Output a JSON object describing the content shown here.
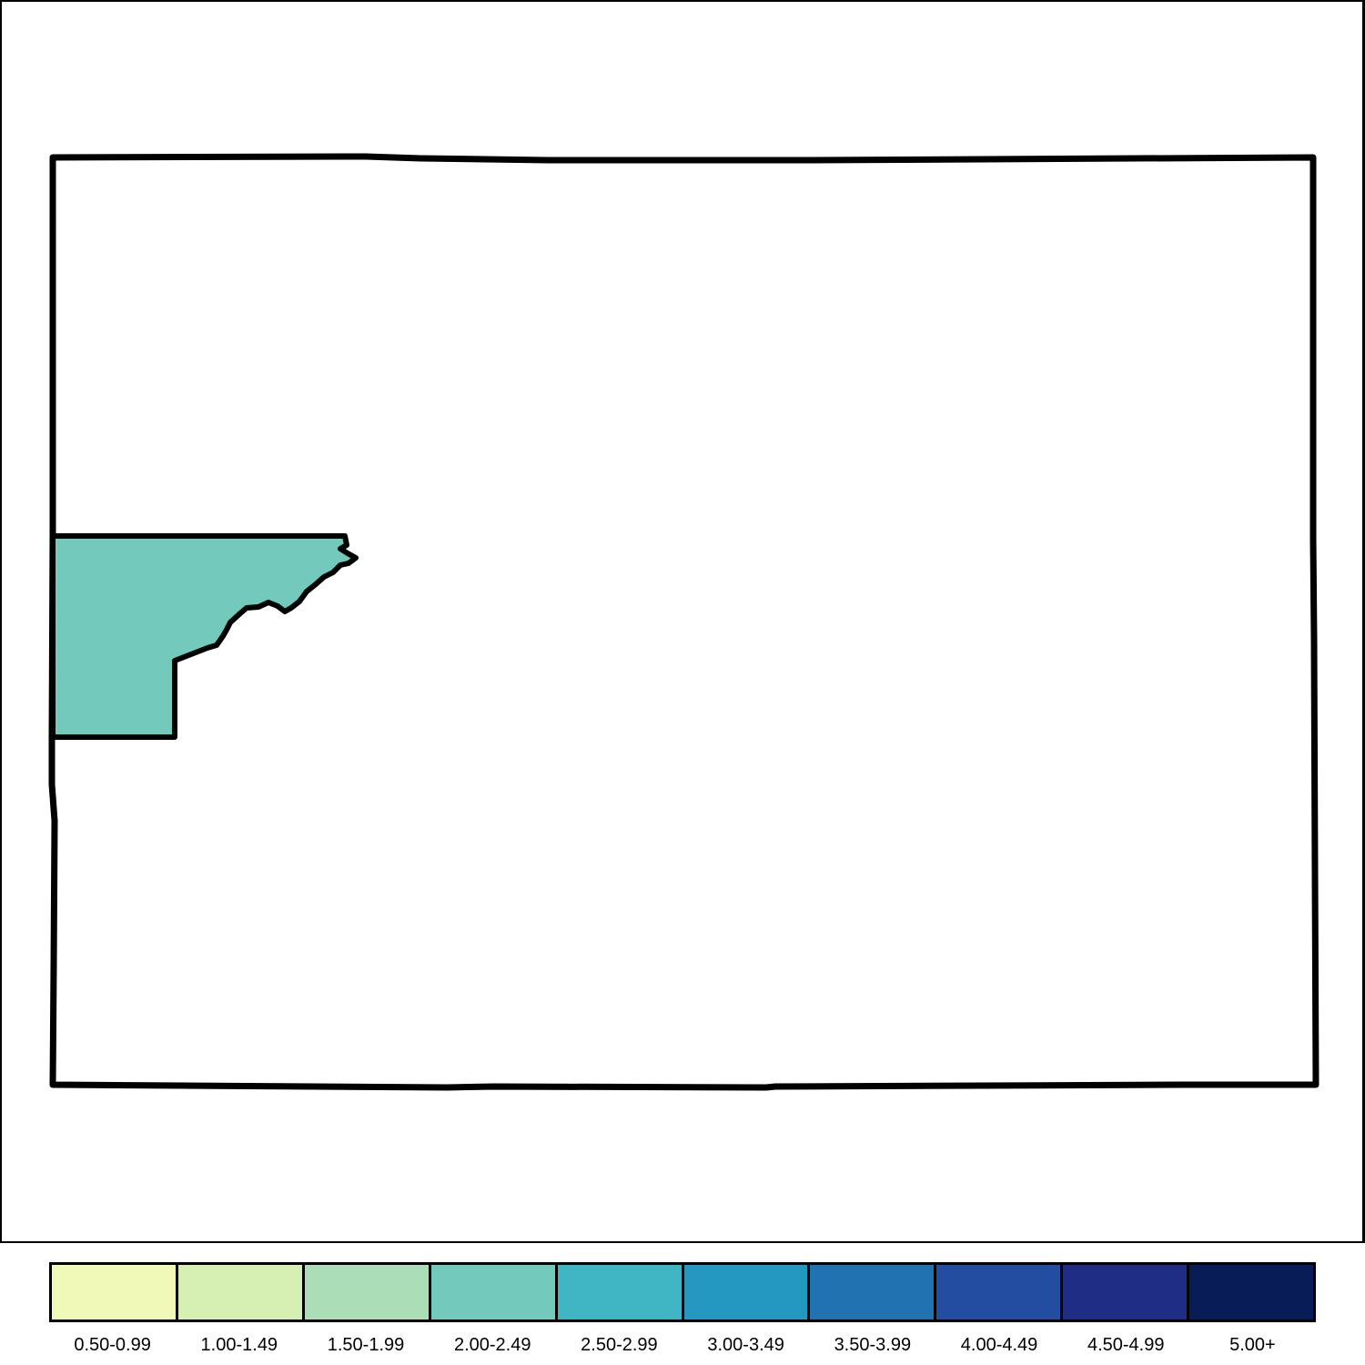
{
  "map": {
    "state_outline_color": "#000000",
    "county_fill_color": "#74c9bd",
    "highlighted_county_class": "2.00-2.49",
    "background_color": "#ffffff"
  },
  "legend": {
    "classes": [
      {
        "label": "0.50-0.99",
        "color": "#f0f9b8"
      },
      {
        "label": "1.00-1.49",
        "color": "#d6efb3"
      },
      {
        "label": "1.50-1.99",
        "color": "#abdeb7"
      },
      {
        "label": "2.00-2.49",
        "color": "#74c9bd"
      },
      {
        "label": "2.50-2.99",
        "color": "#40b5c4"
      },
      {
        "label": "3.00-3.49",
        "color": "#2498c1"
      },
      {
        "label": "3.50-3.99",
        "color": "#2072b1"
      },
      {
        "label": "4.00-4.49",
        "color": "#234da0"
      },
      {
        "label": "4.50-4.99",
        "color": "#1f2d84"
      },
      {
        "label": "5.00+",
        "color": "#081d58"
      }
    ]
  }
}
